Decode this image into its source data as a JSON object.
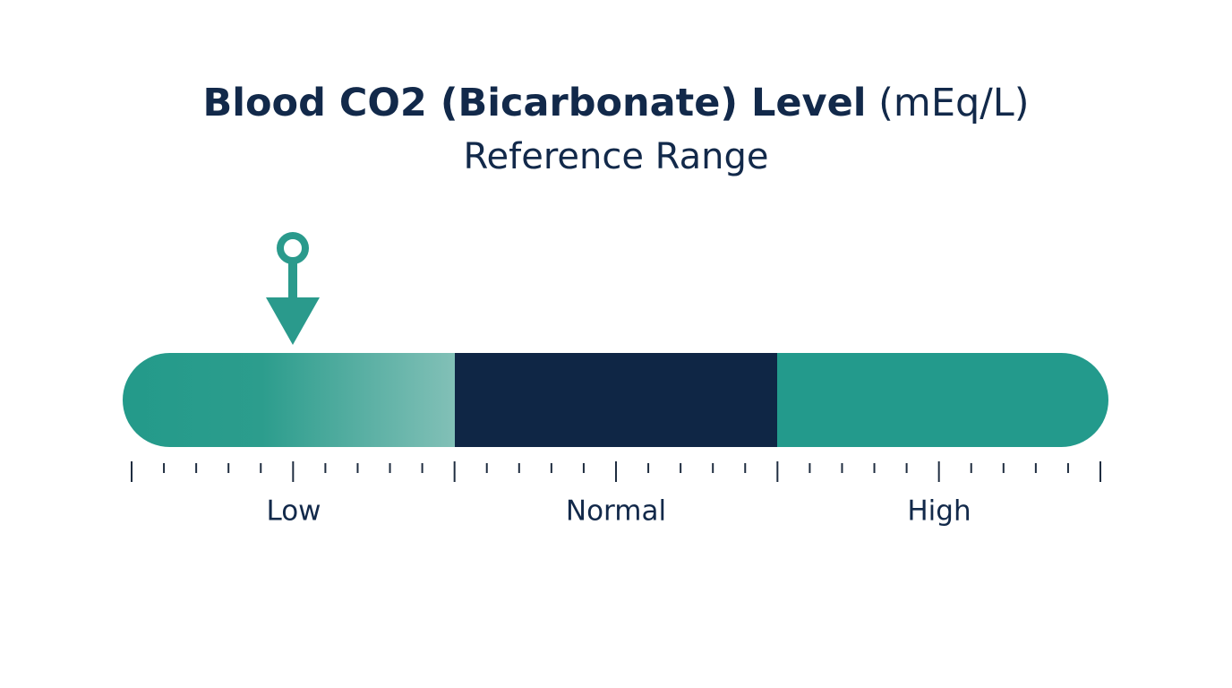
{
  "header": {
    "title": "Blood CO2 (Bicarbonate) Level",
    "unit": "(mEq/L)",
    "subtitle": "Reference Range"
  },
  "scale": {
    "segments": [
      {
        "label": "Low"
      },
      {
        "label": "Normal"
      },
      {
        "label": "High"
      }
    ]
  }
}
